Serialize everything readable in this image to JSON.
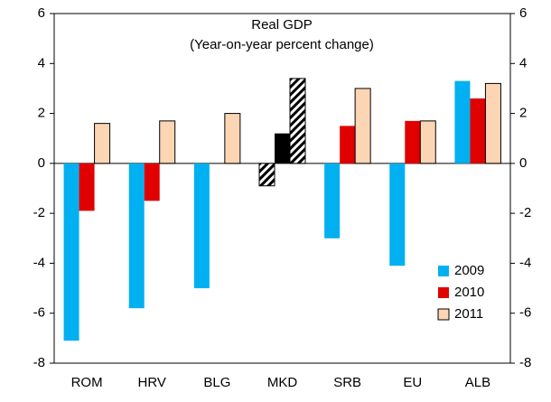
{
  "chart_data": {
    "type": "bar",
    "title": "Real GDP",
    "subtitle": "(Year-on-year percent change)",
    "categories": [
      "ROM",
      "HRV",
      "BLG",
      "MKD",
      "SRB",
      "EU",
      "ALB"
    ],
    "series": [
      {
        "name": "2009",
        "color": "#00b0f0",
        "values": [
          -7.1,
          -5.8,
          -5.0,
          -0.9,
          -3.0,
          -4.1,
          3.3
        ],
        "fills": [
          "#00b0f0",
          "#00b0f0",
          "#00b0f0",
          "hatch",
          "#00b0f0",
          "#00b0f0",
          "#00b0f0"
        ]
      },
      {
        "name": "2010",
        "color": "#e00000",
        "values": [
          -1.9,
          -1.5,
          null,
          1.2,
          1.5,
          1.7,
          2.6
        ],
        "fills": [
          "#e00000",
          "#e00000",
          "#e00000",
          "#000000",
          "#e00000",
          "#e00000",
          "#e00000"
        ]
      },
      {
        "name": "2011",
        "color": "#fcd5b4",
        "edgecolor": "#000000",
        "values": [
          1.6,
          1.7,
          2.0,
          3.4,
          3.0,
          1.7,
          3.2
        ],
        "fills": [
          "#fcd5b4",
          "#fcd5b4",
          "#fcd5b4",
          "hatch",
          "#fcd5b4",
          "#fcd5b4",
          "#fcd5b4"
        ]
      }
    ],
    "ylim": [
      -8,
      6
    ],
    "yticks": [
      -8,
      -6,
      -4,
      -2,
      0,
      2,
      4,
      6
    ],
    "secondary_axis_labels": true,
    "grid": false,
    "legend": "lower right"
  }
}
